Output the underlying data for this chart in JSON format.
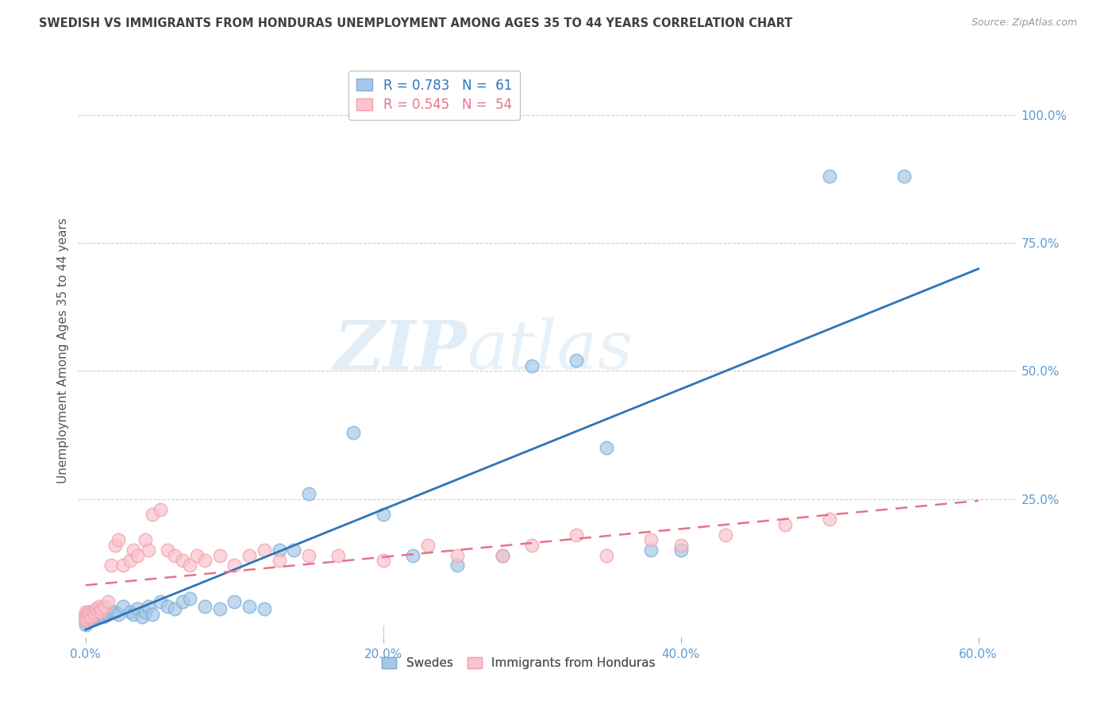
{
  "title": "SWEDISH VS IMMIGRANTS FROM HONDURAS UNEMPLOYMENT AMONG AGES 35 TO 44 YEARS CORRELATION CHART",
  "source": "Source: ZipAtlas.com",
  "ylabel": "Unemployment Among Ages 35 to 44 years",
  "xlabel_ticks": [
    "0.0%",
    "20.0%",
    "40.0%",
    "60.0%"
  ],
  "xlabel_vals": [
    0.0,
    0.2,
    0.4,
    0.6
  ],
  "ylabel_ticks": [
    "100.0%",
    "75.0%",
    "50.0%",
    "25.0%"
  ],
  "ylabel_vals": [
    1.0,
    0.75,
    0.5,
    0.25
  ],
  "xlim": [
    -0.005,
    0.625
  ],
  "ylim": [
    -0.02,
    1.1
  ],
  "swedes_color": "#a8c8e8",
  "swedes_edge_color": "#7bafd4",
  "honduras_color": "#f9c4cc",
  "honduras_edge_color": "#f4a0b0",
  "swedes_line_color": "#2e75b6",
  "honduras_line_color": "#e8718a",
  "swedes_R": 0.783,
  "swedes_N": 61,
  "honduras_R": 0.545,
  "honduras_N": 54,
  "legend_label_1": "R = 0.783   N =  61",
  "legend_label_2": "R = 0.545   N =  54",
  "legend_labels_bottom": [
    "Swedes",
    "Immigrants from Honduras"
  ],
  "swedes_x": [
    0.0,
    0.0,
    0.0,
    0.0,
    0.0,
    0.001,
    0.001,
    0.002,
    0.002,
    0.003,
    0.003,
    0.004,
    0.004,
    0.005,
    0.005,
    0.006,
    0.006,
    0.007,
    0.008,
    0.009,
    0.01,
    0.011,
    0.012,
    0.013,
    0.015,
    0.017,
    0.02,
    0.022,
    0.025,
    0.03,
    0.032,
    0.035,
    0.038,
    0.04,
    0.042,
    0.045,
    0.05,
    0.055,
    0.06,
    0.065,
    0.07,
    0.08,
    0.09,
    0.1,
    0.11,
    0.12,
    0.13,
    0.14,
    0.15,
    0.18,
    0.2,
    0.22,
    0.25,
    0.28,
    0.3,
    0.33,
    0.35,
    0.38,
    0.4,
    0.5,
    0.55
  ],
  "swedes_y": [
    0.01,
    0.02,
    0.005,
    0.015,
    0.025,
    0.01,
    0.02,
    0.015,
    0.025,
    0.02,
    0.03,
    0.015,
    0.025,
    0.02,
    0.03,
    0.025,
    0.02,
    0.03,
    0.02,
    0.025,
    0.03,
    0.025,
    0.02,
    0.03,
    0.025,
    0.03,
    0.03,
    0.025,
    0.04,
    0.03,
    0.025,
    0.035,
    0.02,
    0.03,
    0.04,
    0.025,
    0.05,
    0.04,
    0.035,
    0.05,
    0.055,
    0.04,
    0.035,
    0.05,
    0.04,
    0.035,
    0.15,
    0.15,
    0.26,
    0.38,
    0.22,
    0.14,
    0.12,
    0.14,
    0.51,
    0.52,
    0.35,
    0.15,
    0.15,
    0.88,
    0.88
  ],
  "honduras_x": [
    0.0,
    0.0,
    0.0,
    0.0,
    0.001,
    0.001,
    0.002,
    0.003,
    0.004,
    0.005,
    0.006,
    0.007,
    0.008,
    0.009,
    0.01,
    0.011,
    0.013,
    0.015,
    0.017,
    0.02,
    0.022,
    0.025,
    0.03,
    0.032,
    0.035,
    0.04,
    0.042,
    0.045,
    0.05,
    0.055,
    0.06,
    0.065,
    0.07,
    0.075,
    0.08,
    0.09,
    0.1,
    0.11,
    0.12,
    0.13,
    0.15,
    0.17,
    0.2,
    0.23,
    0.25,
    0.28,
    0.3,
    0.33,
    0.35,
    0.38,
    0.4,
    0.43,
    0.47,
    0.5
  ],
  "honduras_y": [
    0.01,
    0.02,
    0.03,
    0.015,
    0.025,
    0.02,
    0.03,
    0.025,
    0.02,
    0.03,
    0.025,
    0.035,
    0.03,
    0.04,
    0.03,
    0.035,
    0.04,
    0.05,
    0.12,
    0.16,
    0.17,
    0.12,
    0.13,
    0.15,
    0.14,
    0.17,
    0.15,
    0.22,
    0.23,
    0.15,
    0.14,
    0.13,
    0.12,
    0.14,
    0.13,
    0.14,
    0.12,
    0.14,
    0.15,
    0.13,
    0.14,
    0.14,
    0.13,
    0.16,
    0.14,
    0.14,
    0.16,
    0.18,
    0.14,
    0.17,
    0.16,
    0.18,
    0.2,
    0.21
  ],
  "watermark_zip": "ZIP",
  "watermark_atlas": "atlas",
  "background_color": "#ffffff",
  "grid_color": "#d0d0d0",
  "title_color": "#404040",
  "tick_color": "#5b9bd5",
  "ylabel_color": "#555555"
}
